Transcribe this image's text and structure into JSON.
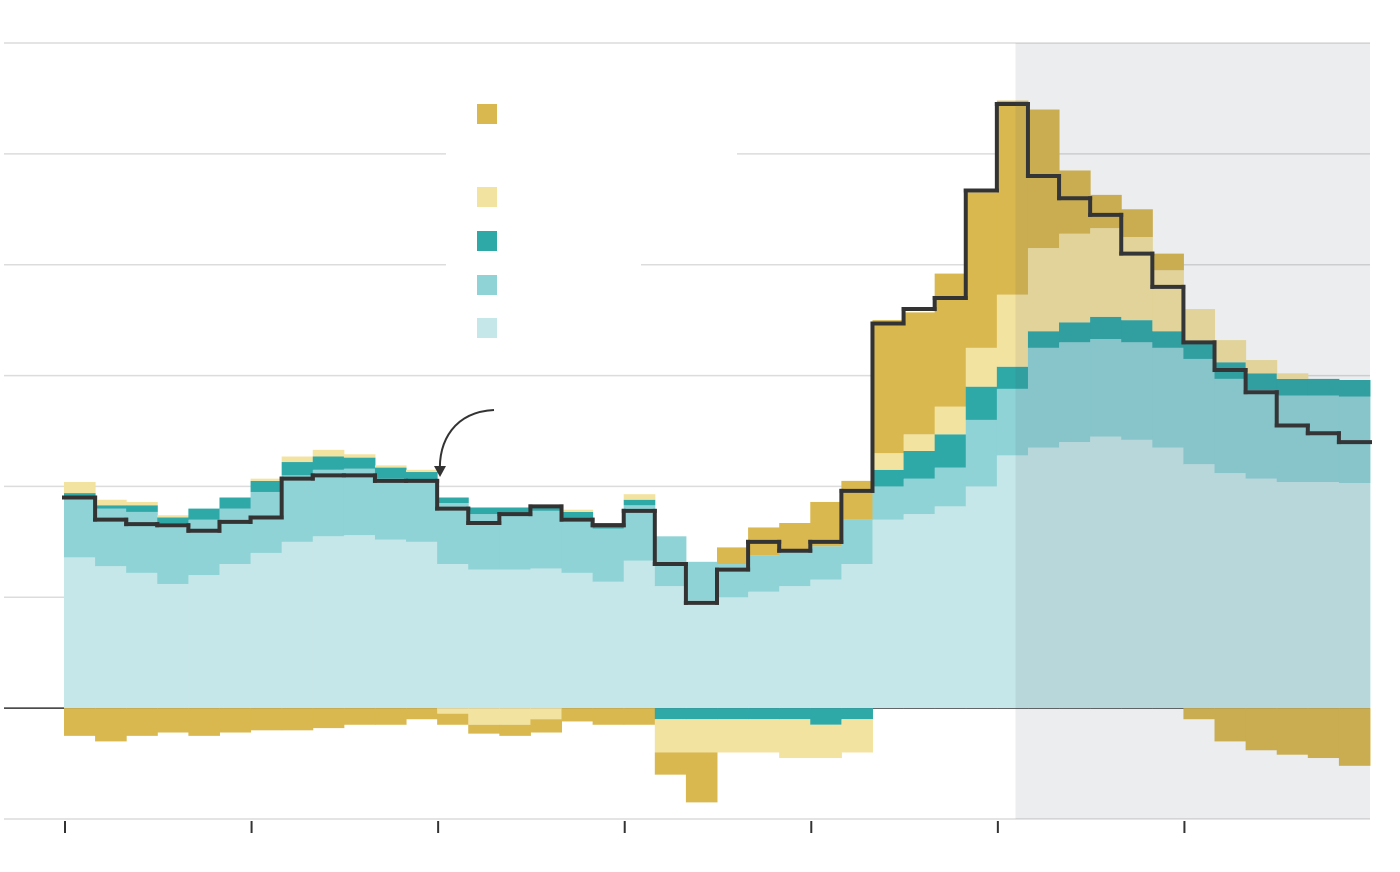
{
  "chart_data": {
    "type": "stacked-step",
    "x": [
      0,
      1,
      2,
      3,
      4,
      5,
      6,
      7,
      8,
      9,
      10,
      11,
      12,
      13,
      14,
      15,
      16,
      17,
      18,
      19,
      20,
      21,
      22,
      23,
      24,
      25,
      26,
      27,
      28,
      29,
      30,
      31,
      32,
      33,
      34,
      35,
      36,
      37,
      38,
      39,
      40,
      41
    ],
    "xlim": [
      0,
      42
    ],
    "xticks": [
      0,
      6,
      12,
      18,
      24,
      30,
      36
    ],
    "ylim": [
      -1,
      6
    ],
    "yticks": [
      -1,
      0,
      1,
      2,
      3,
      4,
      5,
      6
    ],
    "grid": true,
    "shaded_from": 30.6,
    "series": [
      {
        "color": "#c6e7e9",
        "values": [
          1.36,
          1.28,
          1.22,
          1.12,
          1.2,
          1.3,
          1.4,
          1.5,
          1.55,
          1.56,
          1.52,
          1.5,
          1.3,
          1.25,
          1.25,
          1.26,
          1.22,
          1.14,
          1.33,
          1.1,
          0.97,
          1.0,
          1.05,
          1.1,
          1.16,
          1.3,
          1.7,
          1.75,
          1.82,
          2.0,
          2.28,
          2.35,
          2.4,
          2.45,
          2.42,
          2.35,
          2.2,
          2.12,
          2.07,
          2.04,
          2.04,
          2.03
        ]
      },
      {
        "color": "#8fd3d6",
        "values": [
          0.54,
          0.52,
          0.55,
          0.55,
          0.5,
          0.5,
          0.55,
          0.6,
          0.6,
          0.6,
          0.55,
          0.55,
          0.55,
          0.5,
          0.5,
          0.52,
          0.5,
          0.48,
          0.5,
          0.45,
          0.35,
          0.3,
          0.33,
          0.32,
          0.3,
          0.4,
          0.3,
          0.32,
          0.35,
          0.6,
          0.6,
          0.9,
          0.9,
          0.88,
          0.88,
          0.9,
          0.95,
          0.85,
          0.8,
          0.78,
          0.78,
          0.78
        ]
      },
      {
        "color": "#2fa8a8",
        "values": [
          0.04,
          0.03,
          0.06,
          0.05,
          0.1,
          0.1,
          0.1,
          0.12,
          0.12,
          0.1,
          0.1,
          0.08,
          0.05,
          0.06,
          0.06,
          0.05,
          0.05,
          0.05,
          0.05,
          -0.1,
          -0.1,
          -0.1,
          -0.1,
          -0.1,
          -0.15,
          -0.1,
          0.15,
          0.25,
          0.3,
          0.3,
          0.2,
          0.15,
          0.18,
          0.2,
          0.2,
          0.15,
          0.15,
          0.15,
          0.15,
          0.15,
          0.15,
          0.15
        ]
      },
      {
        "color": "#f3e3a0",
        "values": [
          0.1,
          0.05,
          0.03,
          0.02,
          0.0,
          0.0,
          0.02,
          0.05,
          0.06,
          0.03,
          0.02,
          0.02,
          -0.05,
          -0.15,
          -0.15,
          -0.1,
          0.02,
          0.0,
          0.05,
          -0.3,
          -0.3,
          -0.3,
          -0.3,
          -0.35,
          -0.3,
          -0.3,
          0.15,
          0.15,
          0.25,
          0.35,
          0.65,
          0.75,
          0.8,
          0.8,
          0.75,
          0.55,
          0.3,
          0.2,
          0.12,
          0.05,
          0.0,
          0.0
        ]
      },
      {
        "color": "#d9b84f",
        "values": [
          -0.25,
          -0.3,
          -0.25,
          -0.22,
          -0.25,
          -0.22,
          -0.2,
          -0.2,
          -0.18,
          -0.15,
          -0.15,
          -0.1,
          -0.1,
          -0.08,
          -0.1,
          -0.12,
          -0.12,
          -0.15,
          -0.15,
          -0.2,
          -0.45,
          0.15,
          0.25,
          0.25,
          0.4,
          0.35,
          1.2,
          1.1,
          1.2,
          1.4,
          1.75,
          1.25,
          0.57,
          0.3,
          0.25,
          0.15,
          -0.1,
          -0.3,
          -0.38,
          -0.42,
          -0.45,
          -0.52
        ]
      }
    ],
    "line": {
      "color": "#333333",
      "values": [
        1.9,
        1.7,
        1.66,
        1.65,
        1.6,
        1.68,
        1.72,
        2.07,
        2.1,
        2.1,
        2.05,
        2.05,
        1.8,
        1.67,
        1.75,
        1.82,
        1.7,
        1.65,
        1.78,
        1.3,
        0.95,
        1.25,
        1.5,
        1.42,
        1.5,
        1.96,
        3.47,
        3.6,
        3.7,
        4.67,
        5.45,
        4.8,
        4.6,
        4.45,
        4.1,
        3.8,
        3.3,
        3.05,
        2.85,
        2.55,
        2.48,
        2.4
      ]
    }
  }
}
